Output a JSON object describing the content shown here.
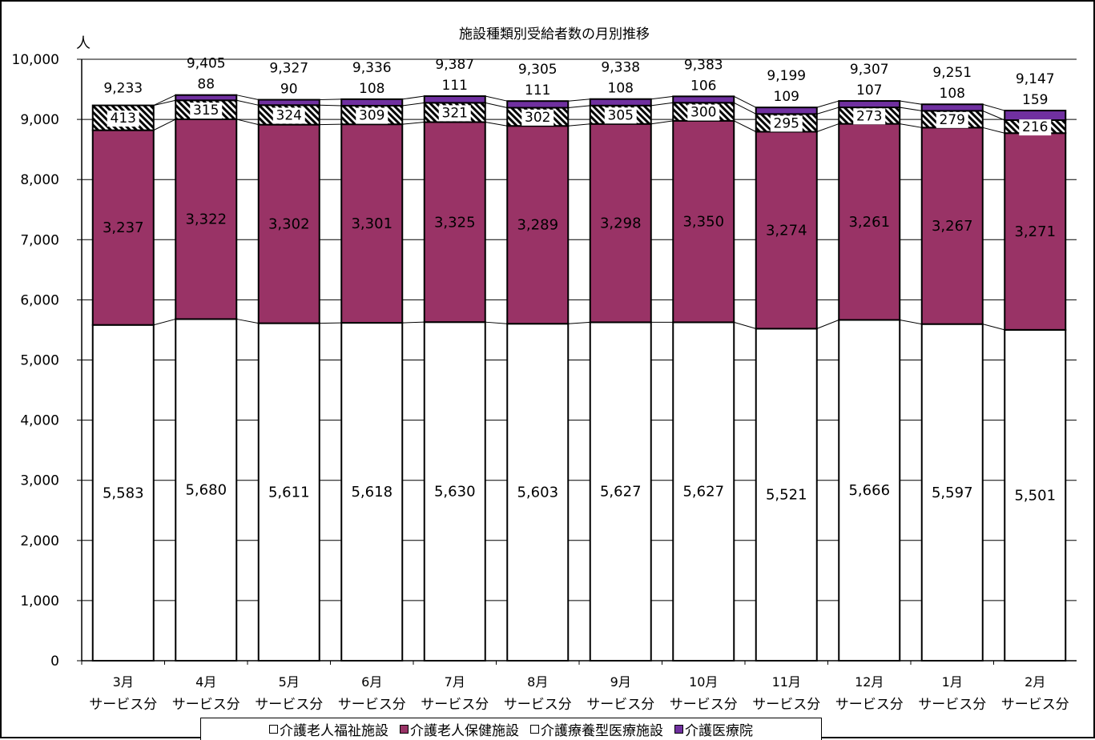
{
  "chart_data": {
    "type": "bar",
    "stacked": true,
    "title": "施設種類別受給者数の月別推移",
    "ylabel": "人",
    "ylim": [
      0,
      10000
    ],
    "yticks": [
      "0",
      "1,000",
      "2,000",
      "3,000",
      "4,000",
      "5,000",
      "6,000",
      "7,000",
      "8,000",
      "9,000",
      "10,000"
    ],
    "categories": [
      [
        "3月",
        "サービス分"
      ],
      [
        "4月",
        "サービス分"
      ],
      [
        "5月",
        "サービス分"
      ],
      [
        "6月",
        "サービス分"
      ],
      [
        "7月",
        "サービス分"
      ],
      [
        "8月",
        "サービス分"
      ],
      [
        "9月",
        "サービス分"
      ],
      [
        "10月",
        "サービス分"
      ],
      [
        "11月",
        "サービス分"
      ],
      [
        "12月",
        "サービス分"
      ],
      [
        "1月",
        "サービス分"
      ],
      [
        "2月",
        "サービス分"
      ]
    ],
    "series": [
      {
        "name": "介護老人福祉施設",
        "color": "#ffffff",
        "pattern": "none",
        "values": [
          5583,
          5680,
          5611,
          5618,
          5630,
          5603,
          5627,
          5627,
          5521,
          5666,
          5597,
          5501
        ],
        "labels": [
          "5,583",
          "5,680",
          "5,611",
          "5,618",
          "5,630",
          "5,603",
          "5,627",
          "5,627",
          "5,521",
          "5,666",
          "5,597",
          "5,501"
        ]
      },
      {
        "name": "介護老人保健施設",
        "color": "#993366",
        "pattern": "none",
        "values": [
          3237,
          3322,
          3302,
          3301,
          3325,
          3289,
          3298,
          3350,
          3274,
          3261,
          3267,
          3271
        ],
        "labels": [
          "3,237",
          "3,322",
          "3,302",
          "3,301",
          "3,325",
          "3,289",
          "3,298",
          "3,350",
          "3,274",
          "3,261",
          "3,267",
          "3,271"
        ]
      },
      {
        "name": "介護療養型医療施設",
        "color": "#ffffff",
        "pattern": "diagonal",
        "values": [
          413,
          315,
          324,
          309,
          321,
          302,
          305,
          300,
          295,
          273,
          279,
          216
        ],
        "labels": [
          "413",
          "315",
          "324",
          "309",
          "321",
          "302",
          "305",
          "300",
          "295",
          "273",
          "279",
          "216"
        ]
      },
      {
        "name": "介護医療院",
        "color": "#7030a0",
        "pattern": "none",
        "values": [
          0,
          88,
          90,
          108,
          111,
          111,
          108,
          106,
          109,
          107,
          108,
          159
        ],
        "labels": [
          "",
          "88",
          "90",
          "108",
          "111",
          "111",
          "108",
          "106",
          "109",
          "107",
          "108",
          "159"
        ]
      }
    ],
    "totals": [
      9233,
      9405,
      9327,
      9336,
      9387,
      9305,
      9338,
      9383,
      9199,
      9307,
      9251,
      9147
    ],
    "total_labels": [
      "9,233",
      "9,405",
      "9,327",
      "9,336",
      "9,387",
      "9,305",
      "9,338",
      "9,383",
      "9,199",
      "9,307",
      "9,251",
      "9,147"
    ],
    "series_lines": true,
    "grid": "horizontal",
    "legend": "bottom"
  }
}
